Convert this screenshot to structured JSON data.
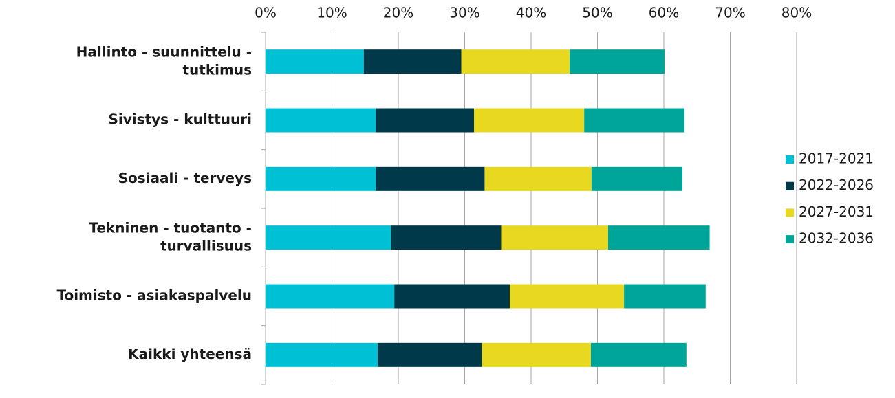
{
  "chart_data": {
    "type": "stacked-bar-horizontal",
    "categories": [
      "Hallinto - suunnittelu - tutkimus",
      "Sivistys - kulttuuri",
      "Sosiaali - terveys",
      "Tekninen - tuotanto - turvallisuus",
      "Toimisto - asiakaspalvelu",
      "Kaikki yhteensä"
    ],
    "series": [
      {
        "name": "2017-2021",
        "color": "#00c0d6",
        "values": [
          14.8,
          16.6,
          16.6,
          18.9,
          19.4,
          16.9
        ]
      },
      {
        "name": "2022-2026",
        "color": "#003a4a",
        "values": [
          14.7,
          14.8,
          16.4,
          16.6,
          17.4,
          15.7
        ]
      },
      {
        "name": "2027-2031",
        "color": "#e8d820",
        "values": [
          16.3,
          16.6,
          16.1,
          16.1,
          17.2,
          16.4
        ]
      },
      {
        "name": "2032-2036",
        "color": "#00a59a",
        "values": [
          14.3,
          15.1,
          13.7,
          15.3,
          12.3,
          14.4
        ]
      }
    ],
    "xlim": [
      0,
      80
    ],
    "xticks": [
      {
        "value": 0,
        "label": "0%"
      },
      {
        "value": 10,
        "label": "10%"
      },
      {
        "value": 20,
        "label": "20%"
      },
      {
        "value": 30,
        "label": "30%"
      },
      {
        "value": 40,
        "label": "40%"
      },
      {
        "value": 50,
        "label": "50%"
      },
      {
        "value": 60,
        "label": "60%"
      },
      {
        "value": 70,
        "label": "70%"
      },
      {
        "value": 80,
        "label": "80%"
      }
    ],
    "grid": true,
    "legend": "right"
  }
}
